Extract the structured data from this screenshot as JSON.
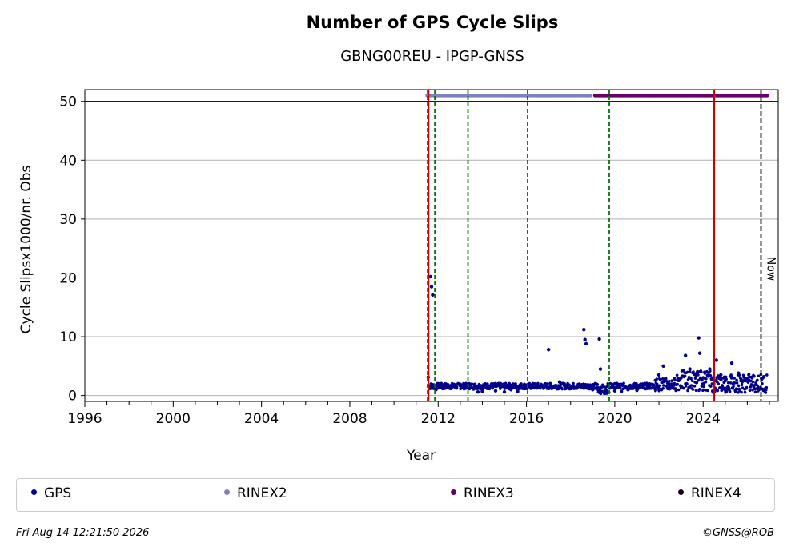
{
  "chart_data": {
    "type": "scatter",
    "title": "Number of GPS Cycle Slips",
    "subtitle": "GBNG00REU - IPGP-GNSS",
    "xlabel": "Year",
    "ylabel": "Cycle Slipsx1000/nr. Obs",
    "xlim": [
      1996,
      2027.4
    ],
    "ylim": [
      -1,
      52
    ],
    "x_ticks": [
      1996,
      2000,
      2004,
      2008,
      2012,
      2016,
      2020,
      2024
    ],
    "x_tick_labels": [
      "1996",
      "2000",
      "2004",
      "2008",
      "2012",
      "2016",
      "2020",
      "2024"
    ],
    "y_ticks": [
      0,
      10,
      20,
      30,
      40,
      50
    ],
    "y_tick_labels": [
      "0",
      "10",
      "20",
      "30",
      "40",
      "50"
    ],
    "grid": "horizontal",
    "colors": {
      "gps": "#00008b",
      "rinex2": "#8080c0",
      "rinex3": "#660066",
      "rinex4": "#1a0020",
      "event_green": "#007700",
      "event_red": "#cc0000",
      "now": "#000000"
    },
    "series": [
      {
        "name": "GPS",
        "x": [
          2011.55,
          2011.58,
          2011.6,
          2011.65,
          2011.7,
          2011.75,
          2011.8,
          2011.85,
          2011.9,
          2012.0,
          2012.2,
          2012.4,
          2012.6,
          2012.8,
          2013.0,
          2013.2,
          2013.4,
          2013.6,
          2013.8,
          2014.0,
          2014.3,
          2014.6,
          2015.0,
          2015.3,
          2015.6,
          2016.0,
          2016.3,
          2016.6,
          2017.0,
          2017.2,
          2017.5,
          2017.8,
          2018.0,
          2018.3,
          2018.6,
          2018.65,
          2018.7,
          2019.0,
          2019.3,
          2019.35,
          2019.6,
          2020.0,
          2020.3,
          2020.6,
          2021.0,
          2021.3,
          2021.6,
          2022.0,
          2022.2,
          2022.4,
          2022.7,
          2023.0,
          2023.2,
          2023.4,
          2023.7,
          2023.8,
          2023.85,
          2024.0,
          2024.3,
          2024.6,
          2024.8,
          2025.0,
          2025.3,
          2025.6,
          2025.9,
          2026.2,
          2026.5
        ],
        "y": [
          3.1,
          1.5,
          1.2,
          20.2,
          18.5,
          17.1,
          1.8,
          1.3,
          1.0,
          1.5,
          1.2,
          1.8,
          1.5,
          1.4,
          1.9,
          1.6,
          2.0,
          1.1,
          0.6,
          0.7,
          1.5,
          0.8,
          0.6,
          1.0,
          0.7,
          1.2,
          1.8,
          1.6,
          7.8,
          1.5,
          2.3,
          1.3,
          1.2,
          1.5,
          11.2,
          9.5,
          8.8,
          1.0,
          9.6,
          4.5,
          0.9,
          0.8,
          0.7,
          1.0,
          0.9,
          1.3,
          1.8,
          3.5,
          5.0,
          1.2,
          2.0,
          3.0,
          6.8,
          4.5,
          2.2,
          9.8,
          7.2,
          3.0,
          4.5,
          6.0,
          3.5,
          2.5,
          5.5,
          3.8,
          2.5,
          1.8,
          1.2
        ]
      },
      {
        "name": "RINEX2",
        "x_range": [
          2011.5,
          2018.9
        ],
        "y": 51
      },
      {
        "name": "RINEX3",
        "x_range": [
          2019.1,
          2026.9
        ],
        "y": 51
      },
      {
        "name": "RINEX4",
        "x_range": [],
        "y": 51
      }
    ],
    "event_lines": [
      {
        "x": 2011.52,
        "style": "green-dashed"
      },
      {
        "x": 2011.56,
        "style": "red-solid"
      },
      {
        "x": 2011.85,
        "style": "green-dashed"
      },
      {
        "x": 2013.35,
        "style": "green-dashed"
      },
      {
        "x": 2016.05,
        "style": "green-dashed"
      },
      {
        "x": 2019.75,
        "style": "green-dashed"
      },
      {
        "x": 2024.5,
        "style": "red-solid"
      },
      {
        "x": 2026.62,
        "style": "now-dashed"
      }
    ],
    "annotation": "Now"
  },
  "legend": {
    "items": [
      {
        "label": "GPS",
        "color": "#00008b"
      },
      {
        "label": "RINEX2",
        "color": "#8080c0"
      },
      {
        "label": "RINEX3",
        "color": "#660066"
      },
      {
        "label": "RINEX4",
        "color": "#1a0020"
      }
    ]
  },
  "footer": {
    "timestamp": "Fri Aug 14 12:21:50 2026",
    "credit": "©GNSS@ROB"
  }
}
